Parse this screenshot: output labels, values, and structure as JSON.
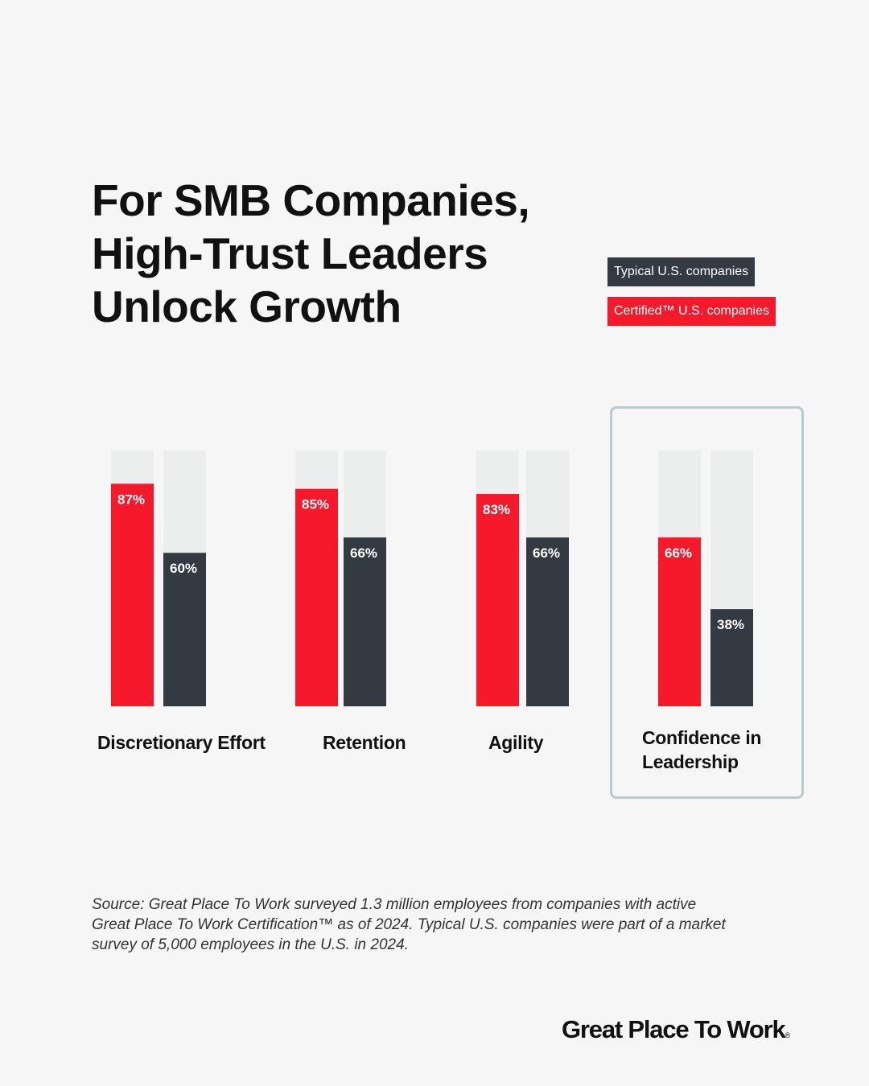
{
  "title": {
    "line1": "For SMB Companies,",
    "line2": "High-Trust Leaders",
    "line3": "Unlock Growth"
  },
  "legend": {
    "typical": "Typical U.S. companies",
    "certified": "Certified™ U.S. companies"
  },
  "colors": {
    "certified": "#f5192b",
    "typical": "#343a41",
    "track": "#eceeed",
    "highlight_border": "#b9cbcf",
    "background": "#f5f6f5"
  },
  "chart_data": {
    "type": "bar",
    "title": "For SMB Companies, High-Trust Leaders Unlock Growth",
    "categories": [
      "Discretionary Effort",
      "Retention",
      "Agility",
      "Confidence in Leadership"
    ],
    "series": [
      {
        "name": "Certified™ U.S. companies",
        "values": [
          87,
          85,
          83,
          66
        ]
      },
      {
        "name": "Typical U.S. companies",
        "values": [
          60,
          66,
          66,
          38
        ]
      }
    ],
    "value_labels": {
      "certified": [
        "87%",
        "85%",
        "83%",
        "66%"
      ],
      "typical": [
        "60%",
        "66%",
        "66%",
        "38%"
      ]
    },
    "ylim": [
      0,
      100
    ],
    "xlabel": "",
    "ylabel": "",
    "grid": false,
    "highlighted_category": "Confidence in Leadership"
  },
  "categories_display": {
    "discretionary_effort": "Discretionary Effort",
    "retention": "Retention",
    "agility": "Agility",
    "confidence_line1": "Confidence in",
    "confidence_line2": "Leadership"
  },
  "source": "Source: Great Place To Work surveyed 1.3 million employees from companies with active Great Place To Work Certification™ as of 2024. Typical U.S. companies were part of a market survey of 5,000 employees in the U.S. in 2024.",
  "logo": {
    "text": "Great Place To Work",
    "mark": "®"
  }
}
